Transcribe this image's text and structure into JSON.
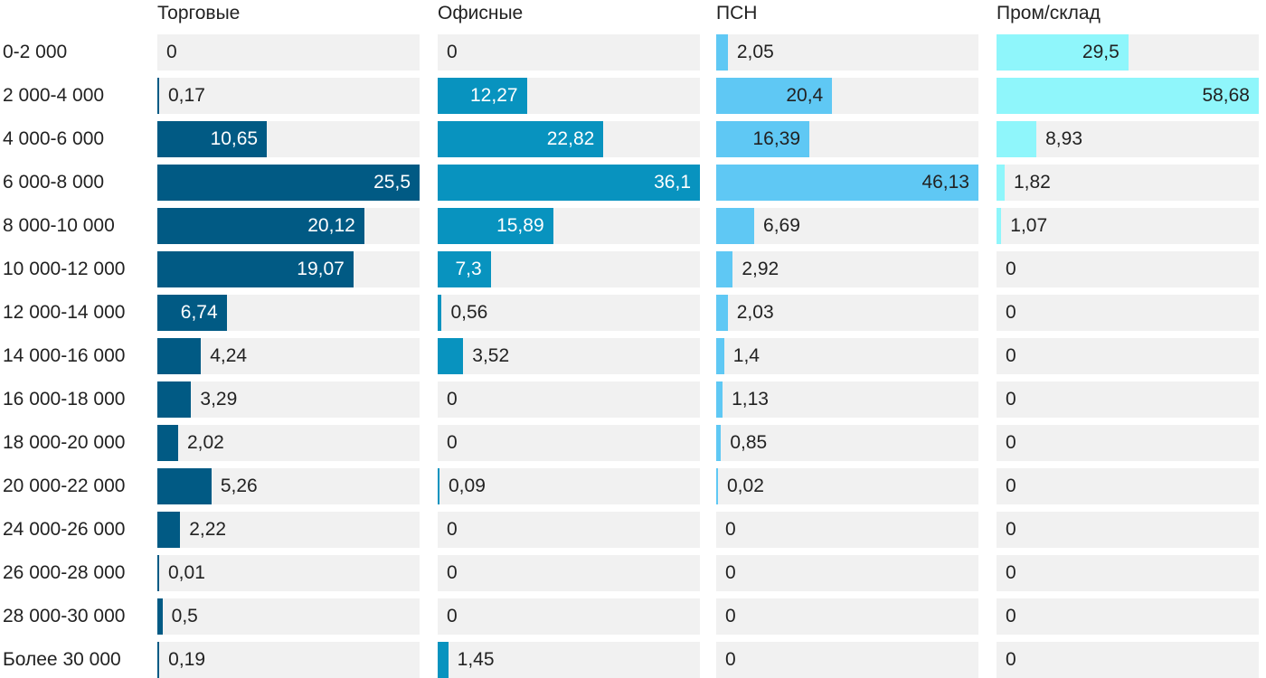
{
  "chart_data": {
    "type": "bar",
    "orientation": "horizontal",
    "layout": "small-multiples",
    "categories": [
      "0-2 000",
      "2 000-4 000",
      "4 000-6 000",
      "6 000-8 000",
      "8 000-10 000",
      "10 000-12 000",
      "12 000-14 000",
      "14 000-16 000",
      "16 000-18 000",
      "18 000-20 000",
      "20 000-22 000",
      "24 000-26 000",
      "26 000-28 000",
      "28 000-30 000",
      "Более 30 000"
    ],
    "series": [
      {
        "name": "Торговые",
        "color": "#015a84",
        "values": [
          0,
          0.17,
          10.65,
          25.5,
          20.12,
          19.07,
          6.74,
          4.24,
          3.29,
          2.02,
          5.26,
          2.22,
          0.01,
          0.5,
          0.19
        ],
        "labels": [
          "0",
          "0,17",
          "10,65",
          "25,5",
          "20,12",
          "19,07",
          "6,74",
          "4,24",
          "3,29",
          "2,02",
          "5,26",
          "2,22",
          "0,01",
          "0,5",
          "0,19"
        ]
      },
      {
        "name": "Офисные",
        "color": "#0893bf",
        "values": [
          0,
          12.27,
          22.82,
          36.1,
          15.89,
          7.3,
          0.56,
          3.52,
          0,
          0,
          0.09,
          0,
          0,
          0,
          1.45
        ],
        "labels": [
          "0",
          "12,27",
          "22,82",
          "36,1",
          "15,89",
          "7,3",
          "0,56",
          "3,52",
          "0",
          "0",
          "0,09",
          "0",
          "0",
          "0",
          "1,45"
        ]
      },
      {
        "name": "ПСН",
        "color": "#5fc8f4",
        "values": [
          2.05,
          20.4,
          16.39,
          46.13,
          6.69,
          2.92,
          2.03,
          1.4,
          1.13,
          0.85,
          0.02,
          0,
          0,
          0,
          0
        ],
        "labels": [
          "2,05",
          "20,4",
          "16,39",
          "46,13",
          "6,69",
          "2,92",
          "2,03",
          "1,4",
          "1,13",
          "0,85",
          "0,02",
          "0",
          "0",
          "0",
          "0"
        ]
      },
      {
        "name": "Пром/склад",
        "color": "#8ff6fb",
        "values": [
          29.5,
          58.68,
          8.93,
          1.82,
          1.07,
          0,
          0,
          0,
          0,
          0,
          0,
          0,
          0,
          0,
          0
        ],
        "labels": [
          "29,5",
          "58,68",
          "8,93",
          "1,82",
          "1,07",
          "0",
          "0",
          "0",
          "0",
          "0",
          "0",
          "0",
          "0",
          "0",
          "0"
        ]
      }
    ],
    "track_color": "#f1f1f1",
    "grid": false,
    "legend": "none"
  }
}
